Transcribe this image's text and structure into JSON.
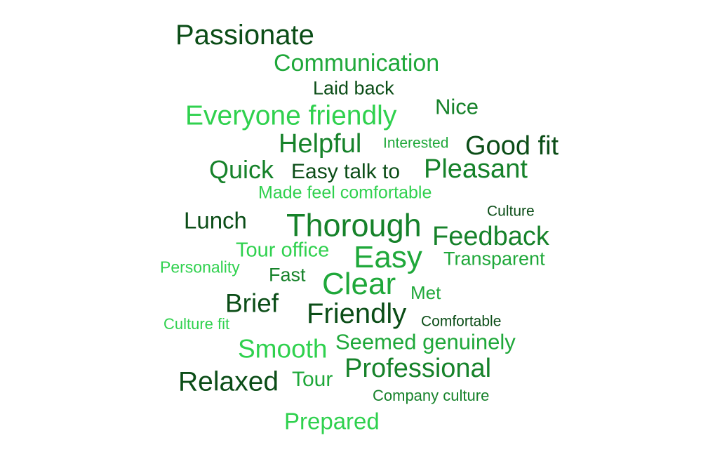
{
  "colors": {
    "dark": "#0b4d17",
    "mid": "#16822a",
    "green": "#1fa83a",
    "light": "#2fd14e"
  },
  "words": [
    "Passionate",
    "Communication",
    "Laid back",
    "Nice",
    "Everyone friendly",
    "Helpful",
    "Interested",
    "Good fit",
    "Quick",
    "Easy talk to",
    "Pleasant",
    "Made feel comfortable",
    "Culture",
    "Lunch",
    "Thorough",
    "Feedback",
    "Tour office",
    "Easy",
    "Transparent",
    "Personality",
    "Fast",
    "Clear",
    "Met",
    "Brief",
    "Friendly",
    "Comfortable",
    "Culture fit",
    "Smooth",
    "Seemed genuinely",
    "Professional",
    "Relaxed",
    "Tour",
    "Company culture",
    "Prepared"
  ]
}
